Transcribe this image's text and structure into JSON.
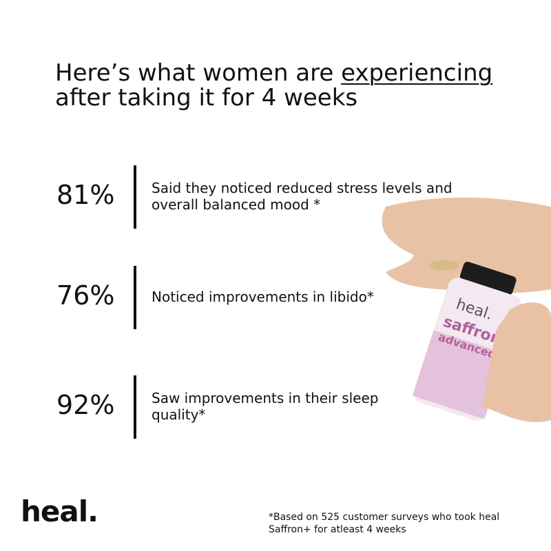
{
  "header": {
    "title_start": "Here’s what women are ",
    "title_underlined": "experiencing",
    "title_line2": "after taking it for 4 weeks"
  },
  "stats": [
    {
      "value": "81%",
      "lines": [
        "Said they noticed reduced stress levels and",
        "overall balanced mood  *"
      ]
    },
    {
      "value": "76%",
      "lines": [
        "Noticed improvements in libido*"
      ]
    },
    {
      "value": "92%",
      "lines": [
        "Saw improvements in their sleep",
        "quality*"
      ]
    }
  ],
  "product": {
    "brand": "heal.",
    "name": "saffron+",
    "variant": "advanced"
  },
  "footer": {
    "logo": "heal.",
    "note": [
      "*Based on 525 customer surveys who took heal",
      "Saffron+ for atleast 4 weeks"
    ]
  }
}
